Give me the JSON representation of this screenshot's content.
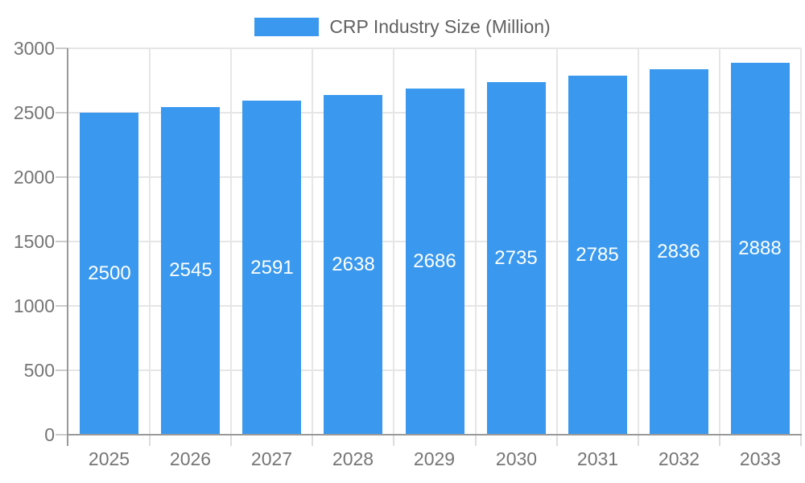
{
  "chart_data": {
    "type": "bar",
    "title": "CRP Industry Size (Million)",
    "series_name": "CRP Industry Size (Million)",
    "categories": [
      "2025",
      "2026",
      "2027",
      "2028",
      "2029",
      "2030",
      "2031",
      "2032",
      "2033"
    ],
    "values": [
      2500,
      2545,
      2591,
      2638,
      2686,
      2735,
      2785,
      2836,
      2888
    ],
    "value_labels": [
      "2500",
      "2545",
      "2591",
      "2638",
      "2686",
      "2735",
      "2785",
      "2836",
      "2888"
    ],
    "xlabel": "",
    "ylabel": "",
    "ylim": [
      0,
      3000
    ],
    "y_ticks": [
      0,
      500,
      1000,
      1500,
      2000,
      2500,
      3000
    ],
    "grid": true,
    "legend_position": "top",
    "colors": {
      "bar": "#3a99ee",
      "value_label": "#ffffff",
      "axis_text": "#757575",
      "legend_text": "#616161",
      "axis_line": "#999999",
      "gridline": "#e6e6e6"
    }
  }
}
